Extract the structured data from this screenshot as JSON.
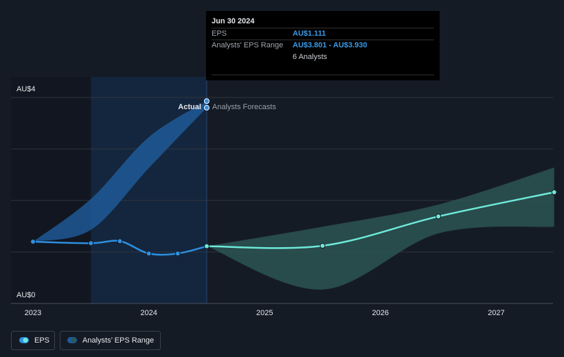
{
  "chart_data": {
    "type": "line",
    "xlim": [
      2022.81,
      2027.49
    ],
    "xticks": [
      2023,
      2024,
      2025,
      2026,
      2027
    ],
    "ylim": [
      0,
      4
    ],
    "yticks": [
      {
        "value": 0,
        "label": "AU$0"
      },
      {
        "value": 4,
        "label": "AU$4"
      }
    ],
    "grid_lines": [
      0,
      1,
      2,
      3,
      4
    ],
    "highlight": [
      2023.5,
      2024.5
    ],
    "actual_label": "Actual",
    "forecast_label": "Analysts Forecasts",
    "series": [
      {
        "name": "EPS",
        "color": "#2e8fe0",
        "x": [
          2023,
          2023.5,
          2023.75,
          2024,
          2024.25,
          2024.5
        ],
        "values": [
          1.2,
          1.17,
          1.21,
          0.97,
          0.97,
          1.111
        ]
      },
      {
        "color": "#6ee9d9",
        "x": [
          2024.5,
          2025.5,
          2026.5,
          2027.5
        ],
        "values": [
          1.111,
          1.12,
          1.69,
          2.16
        ]
      }
    ],
    "ranges": [
      {
        "name": "Analysts’ EPS Range",
        "color": "#1f5d9c",
        "x": [
          2023,
          2023.5,
          2024,
          2024.5
        ],
        "low": [
          1.2,
          1.43,
          2.63,
          3.801
        ],
        "high": [
          1.2,
          2.03,
          3.23,
          3.93
        ]
      },
      {
        "color": "#2d5755",
        "x": [
          2024.5,
          2025.5,
          2026.5,
          2027.5
        ],
        "low": [
          1.111,
          0.27,
          1.36,
          1.49
        ],
        "high": [
          1.111,
          1.49,
          1.92,
          2.64
        ]
      }
    ],
    "tooltip": {
      "date": "Jun 30 2024",
      "eps_label": "EPS",
      "eps_value": "AU$1.111",
      "range_label": "Analysts' EPS Range",
      "range_value": "AU$3.801 - AU$3.930",
      "analysts": "6 Analysts"
    }
  }
}
